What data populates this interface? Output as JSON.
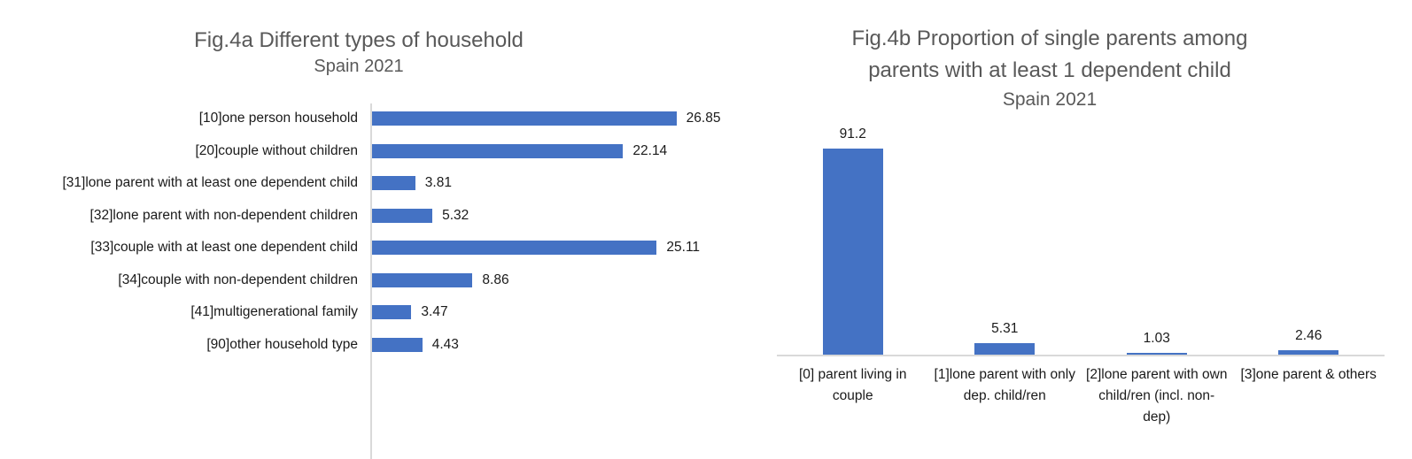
{
  "palette": {
    "bar_color": "#4472C4",
    "title_color": "#595959",
    "text_color": "#1a1a1a",
    "axis_line_color": "#D9D9D9",
    "background": "#FFFFFF"
  },
  "chart_data": [
    {
      "type": "bar",
      "orientation": "horizontal",
      "title": "Fig.4a Different types of household",
      "subtitle": "Spain 2021",
      "categories": [
        "[10]one person household",
        "[20]couple without children",
        "[31]lone parent with at least one dependent child",
        "[32]lone parent with non-dependent children",
        "[33]couple with at least one dependent  child",
        "[34]couple with non-dependent children",
        "[41]multigenerational family",
        "[90]other household type"
      ],
      "values": [
        26.85,
        22.14,
        3.81,
        5.32,
        25.11,
        8.86,
        3.47,
        4.43
      ],
      "value_labels": [
        "26.85",
        "22.14",
        "3.81",
        "5.32",
        "25.11",
        "8.86",
        "3.47",
        "4.43"
      ],
      "xlim": [
        0,
        30
      ],
      "grid": false,
      "legend": "none"
    },
    {
      "type": "bar",
      "orientation": "vertical",
      "title": "Fig.4b Proportion of single parents among parents with at least 1 dependent child",
      "title_lines": [
        "Fig.4b Proportion of single parents among",
        "parents with at least 1 dependent child"
      ],
      "subtitle": "Spain 2021",
      "categories": [
        "[0] parent living in couple",
        "[1]lone parent with only dep. child/ren",
        "[2]lone parent with own child/ren (incl. non-dep)",
        "[3]one parent & others"
      ],
      "values": [
        91.2,
        5.31,
        1.03,
        2.46
      ],
      "value_labels": [
        "91.2",
        "5.31",
        "1.03",
        "2.46"
      ],
      "ylim": [
        0,
        100
      ],
      "grid": false,
      "legend": "none"
    }
  ]
}
